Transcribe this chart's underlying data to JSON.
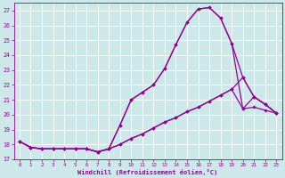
{
  "xlabel": "Windchill (Refroidissement éolien,°C)",
  "bg_color": "#cde8e8",
  "line_color": "#990099",
  "xlim": [
    -0.5,
    23.5
  ],
  "ylim": [
    17,
    27.5
  ],
  "yticks": [
    17,
    18,
    19,
    20,
    21,
    22,
    23,
    24,
    25,
    26,
    27
  ],
  "xticks": [
    0,
    1,
    2,
    3,
    4,
    5,
    6,
    7,
    8,
    9,
    10,
    11,
    12,
    13,
    14,
    15,
    16,
    17,
    18,
    19,
    20,
    21,
    22,
    23
  ],
  "line1_x": [
    0,
    1,
    2,
    3,
    4,
    5,
    6,
    7,
    8,
    9,
    10,
    11,
    12,
    13,
    14,
    15,
    16,
    17,
    18,
    19,
    20,
    21,
    22,
    23
  ],
  "line1_y": [
    18.2,
    17.8,
    17.7,
    17.7,
    17.7,
    17.7,
    17.7,
    17.5,
    17.7,
    19.3,
    21.0,
    21.5,
    22.0,
    23.1,
    24.7,
    26.2,
    27.1,
    27.2,
    26.5,
    24.8,
    20.4,
    20.5,
    20.3,
    20.1
  ],
  "line2_x": [
    0,
    1,
    2,
    3,
    4,
    5,
    6,
    7,
    8,
    9,
    10,
    11,
    12,
    13,
    14,
    15,
    16,
    17,
    18,
    19,
    20,
    21,
    22,
    23
  ],
  "line2_y": [
    18.2,
    17.8,
    17.7,
    17.7,
    17.7,
    17.7,
    17.7,
    17.5,
    17.7,
    19.3,
    21.0,
    21.5,
    22.0,
    23.1,
    24.7,
    26.2,
    27.1,
    27.2,
    26.5,
    24.8,
    22.5,
    21.2,
    20.7,
    20.1
  ],
  "line3_x": [
    0,
    1,
    2,
    3,
    4,
    5,
    6,
    7,
    8,
    9,
    10,
    11,
    12,
    13,
    14,
    15,
    16,
    17,
    18,
    19,
    20,
    21,
    22,
    23
  ],
  "line3_y": [
    18.2,
    17.8,
    17.7,
    17.7,
    17.7,
    17.7,
    17.7,
    17.5,
    17.7,
    18.0,
    18.4,
    18.7,
    19.1,
    19.5,
    19.8,
    20.2,
    20.5,
    20.9,
    21.3,
    21.7,
    22.5,
    21.2,
    20.7,
    20.1
  ],
  "line4_x": [
    0,
    1,
    2,
    3,
    4,
    5,
    6,
    7,
    8,
    9,
    10,
    11,
    12,
    13,
    14,
    15,
    16,
    17,
    18,
    19,
    20,
    21,
    22,
    23
  ],
  "line4_y": [
    18.2,
    17.8,
    17.7,
    17.7,
    17.7,
    17.7,
    17.7,
    17.5,
    17.7,
    18.0,
    18.4,
    18.7,
    19.1,
    19.5,
    19.8,
    20.2,
    20.5,
    20.9,
    21.3,
    21.7,
    20.4,
    21.2,
    20.7,
    20.1
  ]
}
